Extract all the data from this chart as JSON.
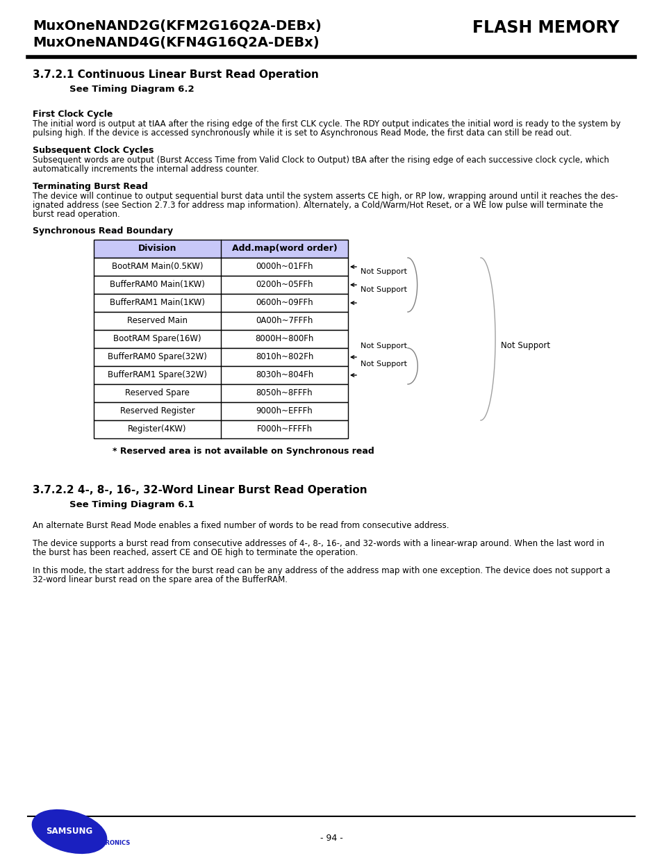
{
  "header_line1": "MuxOneNAND2G(KFM2G16Q2A-DEBx)",
  "header_line2": "MuxOneNAND4G(KFN4G16Q2A-DEBx)",
  "header_right": "FLASH MEMORY",
  "section1_title": "3.7.2.1 Continuous Linear Burst Read Operation",
  "section1_subtitle": "See Timing Diagram 6.2",
  "first_clock_title": "First Clock Cycle",
  "first_clock_text1": "The initial word is output at tIAA after the rising edge of the first CLK cycle. The RDY output indicates the initial word is ready to the system by",
  "first_clock_text2": "pulsing high. If the device is accessed synchronously while it is set to Asynchronous Read Mode, the first data can still be read out.",
  "subsequent_title": "Subsequent Clock Cycles",
  "subsequent_text1": "Subsequent words are output (Burst Access Time from Valid Clock to Output) tBA after the rising edge of each successive clock cycle, which",
  "subsequent_text2": "automatically increments the internal address counter.",
  "terminating_title": "Terminating Burst Read",
  "terminating_text1": "The device will continue to output sequential burst data until the system asserts CE high, or RP low, wrapping around until it reaches the des-",
  "terminating_text2": "ignated address (see Section 2.7.3 for address map information). Alternately, a Cold/Warm/Hot Reset, or a WE low pulse will terminate the",
  "terminating_text3": "burst read operation.",
  "sync_title": "Synchronous Read Boundary",
  "table_headers": [
    "Division",
    "Add.map(word order)"
  ],
  "table_rows": [
    [
      "BootRAM Main(0.5KW)",
      "0000h~01FFh"
    ],
    [
      "BufferRAM0 Main(1KW)",
      "0200h~05FFh"
    ],
    [
      "BufferRAM1 Main(1KW)",
      "0600h~09FFh"
    ],
    [
      "Reserved Main",
      "0A00h~7FFFh"
    ],
    [
      "BootRAM Spare(16W)",
      "8000H~800Fh"
    ],
    [
      "BufferRAM0 Spare(32W)",
      "8010h~802Fh"
    ],
    [
      "BufferRAM1 Spare(32W)",
      "8030h~804Fh"
    ],
    [
      "Reserved Spare",
      "8050h~8FFFh"
    ],
    [
      "Reserved Register",
      "9000h~EFFFh"
    ],
    [
      "Register(4KW)",
      "F000h~FFFFh"
    ]
  ],
  "table_header_color": "#c8c8f8",
  "note_text": "* Reserved area is not available on Synchronous read",
  "section2_title": "3.7.2.2 4-, 8-, 16-, 32-Word Linear Burst Read Operation",
  "section2_subtitle": "See Timing Diagram 6.1",
  "section2_para1": "An alternate Burst Read Mode enables a fixed number of words to be read from consecutive address.",
  "section2_para2a": "The device supports a burst read from consecutive addresses of 4-, 8-, 16-, and 32-words with a linear-wrap around. When the last word in",
  "section2_para2b": "the burst has been reached, assert CE and OE high to terminate the operation.",
  "section2_para3a": "In this mode, the start address for the burst read can be any address of the address map with one exception. The device does not support a",
  "section2_para3b": "32-word linear burst read on the spare area of the BufferRAM.",
  "page_number": "- 94 -",
  "bg_color": "#ffffff",
  "samsung_color": "#1a1aaa"
}
